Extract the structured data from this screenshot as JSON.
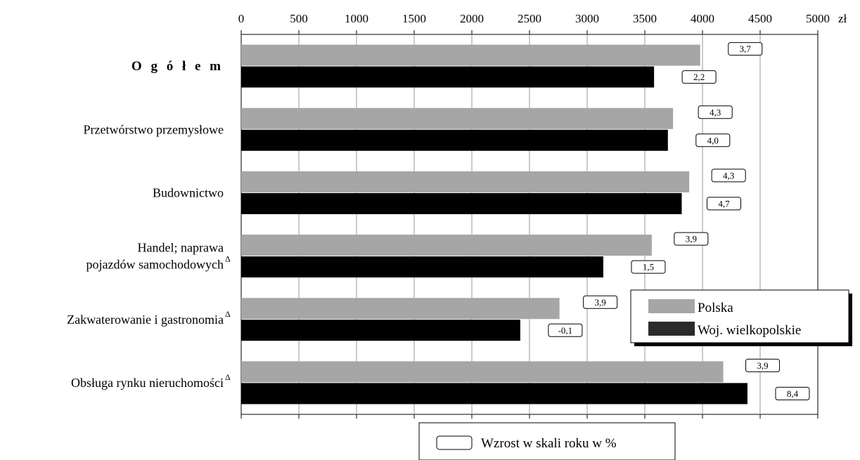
{
  "chart_data": {
    "type": "bar",
    "orientation": "horizontal",
    "currency_unit": "zł",
    "xlim": [
      0,
      5000
    ],
    "x_ticks": [
      "0",
      "500",
      "1000",
      "1500",
      "2000",
      "2500",
      "3000",
      "3500",
      "4000",
      "4500",
      "5000"
    ],
    "grid": true,
    "categories": [
      {
        "label": "O g ó ł e m",
        "lines": [
          "O g ó ł e m"
        ],
        "bold": true,
        "delta": false
      },
      {
        "label": "Przetwórstwo przemysłowe",
        "lines": [
          "Przetwórstwo przemysłowe"
        ],
        "bold": false,
        "delta": false
      },
      {
        "label": "Budownictwo",
        "lines": [
          "Budownictwo"
        ],
        "bold": false,
        "delta": false
      },
      {
        "label": "Handel; naprawa pojazdów samochodowych",
        "lines": [
          "Handel; naprawa",
          "pojazdów samochodowych"
        ],
        "bold": false,
        "delta": true
      },
      {
        "label": "Zakwaterowanie i gastronomia",
        "lines": [
          "Zakwaterowanie i gastronomia"
        ],
        "bold": false,
        "delta": true
      },
      {
        "label": "Obsługa rynku nieruchomości",
        "lines": [
          "Obsługa rynku nieruchomości"
        ],
        "bold": false,
        "delta": true
      }
    ],
    "delta_symbol": "Δ",
    "series": [
      {
        "name": "Polska",
        "color": "#a6a6a6",
        "values": [
          3980,
          3745,
          3885,
          3560,
          2760,
          4180
        ],
        "growth_labels": [
          "3,7",
          "4,3",
          "4,3",
          "3,9",
          "3,9",
          "3,9"
        ]
      },
      {
        "name": "Woj. wielkopolskie",
        "color": "#000000",
        "values": [
          3580,
          3700,
          3820,
          3140,
          2420,
          4390
        ],
        "growth_labels": [
          "2,2",
          "4,0",
          "4,7",
          "1,5",
          "-0,1",
          "8,4"
        ]
      }
    ],
    "legend": {
      "placement": "bottom-right",
      "items": [
        {
          "label": "Polska",
          "color": "#a6a6a6"
        },
        {
          "label": "Woj. wielkopolskie",
          "color": "#2b2b2b"
        }
      ]
    },
    "bottom_legend_label": "Wzrost w skali roku w %"
  }
}
